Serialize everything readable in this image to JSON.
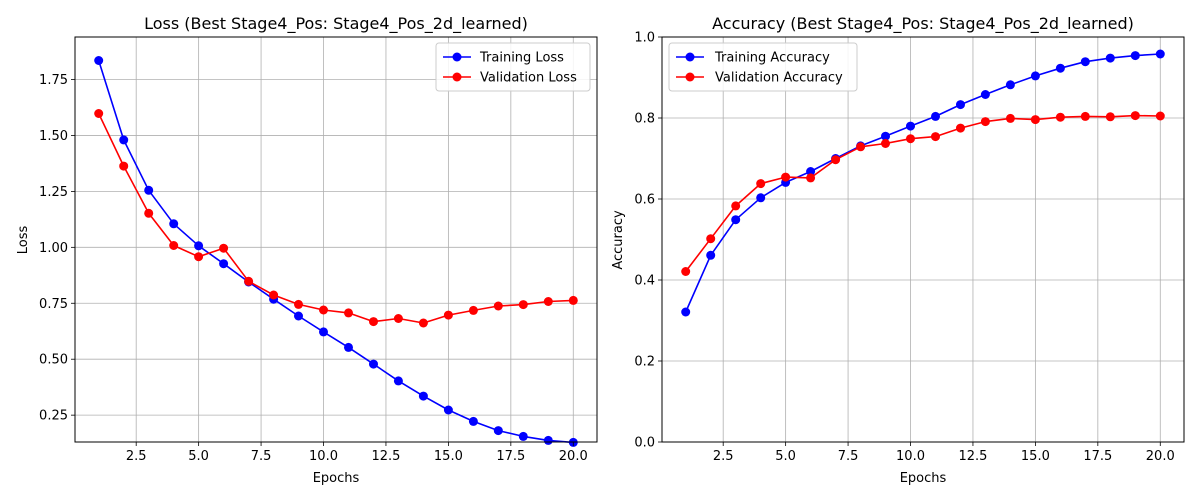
{
  "chart_data": [
    {
      "type": "line",
      "title": "Loss (Best Stage4_Pos: Stage4_Pos_2d_learned)",
      "xlabel": "Epochs",
      "ylabel": "Loss",
      "x": [
        1,
        2,
        3,
        4,
        5,
        6,
        7,
        8,
        9,
        10,
        11,
        12,
        13,
        14,
        15,
        16,
        17,
        18,
        19,
        20
      ],
      "xlim": [
        0.05,
        20.95
      ],
      "ylim": [
        0.13,
        1.94
      ],
      "xticks": [
        2.5,
        5.0,
        7.5,
        10.0,
        12.5,
        15.0,
        17.5,
        20.0
      ],
      "xtick_labels": [
        "2.5",
        "5.0",
        "7.5",
        "10.0",
        "12.5",
        "15.0",
        "17.5",
        "20.0"
      ],
      "yticks": [
        0.25,
        0.5,
        0.75,
        1.0,
        1.25,
        1.5,
        1.75
      ],
      "ytick_labels": [
        "0.25",
        "0.50",
        "0.75",
        "1.00",
        "1.25",
        "1.50",
        "1.75"
      ],
      "grid": true,
      "legend_position": "top-right",
      "series": [
        {
          "name": "Training Loss",
          "color": "#0000ff",
          "values": [
            1.835,
            1.48,
            1.255,
            1.105,
            1.007,
            0.927,
            0.845,
            0.768,
            0.693,
            0.622,
            0.553,
            0.478,
            0.403,
            0.335,
            0.273,
            0.222,
            0.181,
            0.155,
            0.137,
            0.128
          ]
        },
        {
          "name": "Validation Loss",
          "color": "#ff0000",
          "values": [
            1.598,
            1.363,
            1.152,
            1.008,
            0.958,
            0.996,
            0.848,
            0.787,
            0.745,
            0.72,
            0.707,
            0.668,
            0.682,
            0.662,
            0.697,
            0.718,
            0.738,
            0.744,
            0.758,
            0.763
          ]
        }
      ]
    },
    {
      "type": "line",
      "title": "Accuracy (Best Stage4_Pos: Stage4_Pos_2d_learned)",
      "xlabel": "Epochs",
      "ylabel": "Accuracy",
      "x": [
        1,
        2,
        3,
        4,
        5,
        6,
        7,
        8,
        9,
        10,
        11,
        12,
        13,
        14,
        15,
        16,
        17,
        18,
        19,
        20
      ],
      "xlim": [
        0.05,
        20.95
      ],
      "ylim": [
        0.0,
        1.0
      ],
      "xticks": [
        2.5,
        5.0,
        7.5,
        10.0,
        12.5,
        15.0,
        17.5,
        20.0
      ],
      "xtick_labels": [
        "2.5",
        "5.0",
        "7.5",
        "10.0",
        "12.5",
        "15.0",
        "17.5",
        "20.0"
      ],
      "yticks": [
        0.0,
        0.2,
        0.4,
        0.6,
        0.8,
        1.0
      ],
      "ytick_labels": [
        "0.0",
        "0.2",
        "0.4",
        "0.6",
        "0.8",
        "1.0"
      ],
      "grid": true,
      "legend_position": "top-left",
      "series": [
        {
          "name": "Training Accuracy",
          "color": "#0000ff",
          "values": [
            0.321,
            0.461,
            0.549,
            0.603,
            0.641,
            0.668,
            0.7,
            0.731,
            0.755,
            0.78,
            0.804,
            0.833,
            0.858,
            0.882,
            0.904,
            0.923,
            0.939,
            0.948,
            0.954,
            0.958
          ]
        },
        {
          "name": "Validation Accuracy",
          "color": "#ff0000",
          "values": [
            0.421,
            0.502,
            0.583,
            0.638,
            0.654,
            0.652,
            0.697,
            0.729,
            0.737,
            0.749,
            0.754,
            0.775,
            0.791,
            0.799,
            0.796,
            0.802,
            0.804,
            0.803,
            0.806,
            0.805
          ]
        }
      ]
    }
  ]
}
